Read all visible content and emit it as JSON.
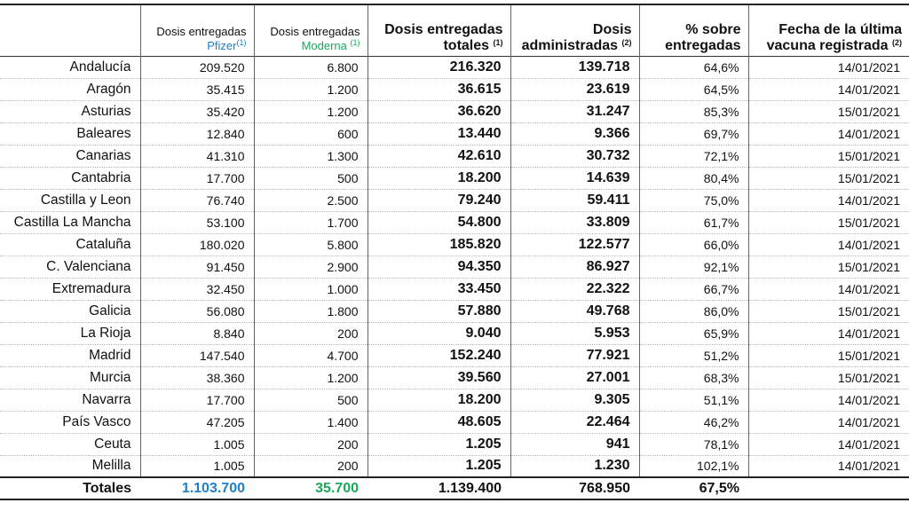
{
  "headers": {
    "pfizer_line1": "Dosis entregadas",
    "pfizer_line2": "Pfizer",
    "moderna_line1": "Dosis entregadas",
    "moderna_line2": "Moderna",
    "totales_line1": "Dosis entregadas",
    "totales_line2": "totales",
    "admin_line1": "Dosis",
    "admin_line2": "administradas",
    "pct_line1": "% sobre",
    "pct_line2": "entregadas",
    "fecha_line1": "Fecha de la última",
    "fecha_line2": "vacuna registrada",
    "note1": "(1)",
    "note2": "(2)"
  },
  "colors": {
    "pfizer": "#1f7fc8",
    "moderna": "#19a85a"
  },
  "rows": [
    {
      "region": "Andalucía",
      "pfizer": "209.520",
      "moderna": "6.800",
      "totales": "216.320",
      "admin": "139.718",
      "pct": "64,6%",
      "fecha": "14/01/2021"
    },
    {
      "region": "Aragón",
      "pfizer": "35.415",
      "moderna": "1.200",
      "totales": "36.615",
      "admin": "23.619",
      "pct": "64,5%",
      "fecha": "14/01/2021"
    },
    {
      "region": "Asturias",
      "pfizer": "35.420",
      "moderna": "1.200",
      "totales": "36.620",
      "admin": "31.247",
      "pct": "85,3%",
      "fecha": "15/01/2021"
    },
    {
      "region": "Baleares",
      "pfizer": "12.840",
      "moderna": "600",
      "totales": "13.440",
      "admin": "9.366",
      "pct": "69,7%",
      "fecha": "14/01/2021"
    },
    {
      "region": "Canarias",
      "pfizer": "41.310",
      "moderna": "1.300",
      "totales": "42.610",
      "admin": "30.732",
      "pct": "72,1%",
      "fecha": "15/01/2021"
    },
    {
      "region": "Cantabria",
      "pfizer": "17.700",
      "moderna": "500",
      "totales": "18.200",
      "admin": "14.639",
      "pct": "80,4%",
      "fecha": "15/01/2021"
    },
    {
      "region": "Castilla y Leon",
      "pfizer": "76.740",
      "moderna": "2.500",
      "totales": "79.240",
      "admin": "59.411",
      "pct": "75,0%",
      "fecha": "14/01/2021"
    },
    {
      "region": "Castilla La Mancha",
      "pfizer": "53.100",
      "moderna": "1.700",
      "totales": "54.800",
      "admin": "33.809",
      "pct": "61,7%",
      "fecha": "15/01/2021"
    },
    {
      "region": "Cataluña",
      "pfizer": "180.020",
      "moderna": "5.800",
      "totales": "185.820",
      "admin": "122.577",
      "pct": "66,0%",
      "fecha": "14/01/2021"
    },
    {
      "region": "C. Valenciana",
      "pfizer": "91.450",
      "moderna": "2.900",
      "totales": "94.350",
      "admin": "86.927",
      "pct": "92,1%",
      "fecha": "15/01/2021"
    },
    {
      "region": "Extremadura",
      "pfizer": "32.450",
      "moderna": "1.000",
      "totales": "33.450",
      "admin": "22.322",
      "pct": "66,7%",
      "fecha": "14/01/2021"
    },
    {
      "region": "Galicia",
      "pfizer": "56.080",
      "moderna": "1.800",
      "totales": "57.880",
      "admin": "49.768",
      "pct": "86,0%",
      "fecha": "15/01/2021"
    },
    {
      "region": "La Rioja",
      "pfizer": "8.840",
      "moderna": "200",
      "totales": "9.040",
      "admin": "5.953",
      "pct": "65,9%",
      "fecha": "14/01/2021"
    },
    {
      "region": "Madrid",
      "pfizer": "147.540",
      "moderna": "4.700",
      "totales": "152.240",
      "admin": "77.921",
      "pct": "51,2%",
      "fecha": "15/01/2021"
    },
    {
      "region": "Murcia",
      "pfizer": "38.360",
      "moderna": "1.200",
      "totales": "39.560",
      "admin": "27.001",
      "pct": "68,3%",
      "fecha": "15/01/2021"
    },
    {
      "region": "Navarra",
      "pfizer": "17.700",
      "moderna": "500",
      "totales": "18.200",
      "admin": "9.305",
      "pct": "51,1%",
      "fecha": "14/01/2021"
    },
    {
      "region": "País Vasco",
      "pfizer": "47.205",
      "moderna": "1.400",
      "totales": "48.605",
      "admin": "22.464",
      "pct": "46,2%",
      "fecha": "14/01/2021"
    },
    {
      "region": "Ceuta",
      "pfizer": "1.005",
      "moderna": "200",
      "totales": "1.205",
      "admin": "941",
      "pct": "78,1%",
      "fecha": "14/01/2021"
    },
    {
      "region": "Melilla",
      "pfizer": "1.005",
      "moderna": "200",
      "totales": "1.205",
      "admin": "1.230",
      "pct": "102,1%",
      "fecha": "14/01/2021"
    }
  ],
  "totals": {
    "label": "Totales",
    "pfizer": "1.103.700",
    "moderna": "35.700",
    "totales": "1.139.400",
    "admin": "768.950",
    "pct": "67,5%"
  }
}
